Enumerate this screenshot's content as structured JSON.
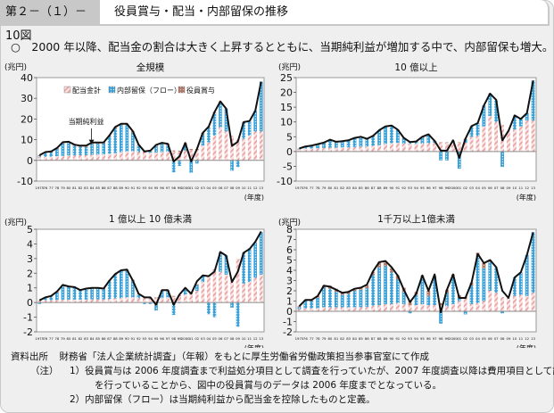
{
  "header": {
    "figure_number": "第２－（１）－10図",
    "figure_title": "役員賞与・配当・内部留保の推移"
  },
  "summary": "○　2000 年以降、配当金の割合は大きく上昇するとともに、当期純利益が増加する中で、内部留保も増大。",
  "legend": {
    "dividends": "配当金計",
    "retained": "内部留保（フロー）",
    "bonus": "役員賞与",
    "net_income": "当期純利益"
  },
  "colors": {
    "dividends": "#e8a0a0",
    "retained": "#3aa0d8",
    "bonus": "#b07868",
    "line": "#111111",
    "plot_bg": "#ffffff",
    "frame_bg": "#efefef"
  },
  "chart_data": [
    {
      "type": "bar",
      "title": "全規模",
      "ylabel": "(兆円)",
      "xlabel": "(年度)",
      "ylim": [
        -10,
        40
      ],
      "yticks": [
        -10,
        0,
        10,
        20,
        30,
        40
      ],
      "annotation": "当期純利益",
      "legend_position": "top",
      "categories": [
        "1975",
        "76",
        "77",
        "78",
        "79",
        "80",
        "81",
        "82",
        "83",
        "84",
        "85",
        "86",
        "87",
        "88",
        "89",
        "90",
        "91",
        "92",
        "93",
        "94",
        "95",
        "96",
        "97",
        "98",
        "99",
        "2000",
        "01",
        "02",
        "03",
        "04",
        "05",
        "06",
        "07",
        "08",
        "09",
        "10",
        "11",
        "12",
        "13"
      ],
      "series": [
        {
          "name": "配当金計",
          "values": [
            1.5,
            1.7,
            1.8,
            2.0,
            2.2,
            2.4,
            2.4,
            2.5,
            2.5,
            2.7,
            2.8,
            2.9,
            3.2,
            3.5,
            4.0,
            4.3,
            4.4,
            4.0,
            3.8,
            3.7,
            3.8,
            4.0,
            4.2,
            4.3,
            4.2,
            4.8,
            5.0,
            5.0,
            7.2,
            8.8,
            12.0,
            16.0,
            14.0,
            12.0,
            10.0,
            10.5,
            12.0,
            14.0,
            14.0
          ]
        },
        {
          "name": "内部留保（フロー）",
          "values": [
            0.5,
            1.8,
            2.0,
            3.5,
            6.0,
            6.0,
            4.6,
            4.0,
            4.0,
            5.3,
            5.2,
            5.2,
            8.3,
            12.0,
            13.0,
            12.7,
            9.0,
            3.0,
            0,
            0.5,
            3.2,
            4.0,
            3.3,
            -5.8,
            -2.7,
            3.1,
            -6.0,
            -1.5,
            5.6,
            7.0,
            10.8,
            12.0,
            11.0,
            -5.0,
            -3.2,
            8.0,
            7.0,
            10.0,
            24.0
          ]
        },
        {
          "name": "役員賞与",
          "values": [
            0.5,
            0.5,
            0.5,
            0.5,
            0.6,
            0.6,
            0.6,
            0.6,
            0.6,
            0.6,
            0.6,
            0.6,
            0.6,
            0.7,
            0.7,
            0.7,
            0.7,
            0.6,
            0.5,
            0.5,
            0.5,
            0.5,
            0.5,
            0.5,
            0.5,
            0.5,
            0.5,
            0.5,
            0.5,
            0.5,
            0.5,
            0.5,
            0,
            0,
            0,
            0,
            0,
            0,
            0
          ]
        },
        {
          "name": "当期純利益",
          "type": "line",
          "values": [
            2.5,
            4.0,
            4.3,
            6.0,
            8.8,
            9.0,
            7.6,
            7.1,
            7.1,
            8.6,
            8.6,
            8.7,
            12.1,
            16.2,
            17.7,
            17.7,
            14.1,
            7.6,
            4.3,
            4.7,
            7.5,
            8.5,
            8.0,
            -0.5,
            2.0,
            8.4,
            -0.5,
            5.5,
            13.3,
            16.3,
            23.3,
            28.5,
            25.0,
            7.0,
            9.0,
            18.5,
            19.0,
            24.0,
            38.0
          ]
        }
      ]
    },
    {
      "type": "bar",
      "title": "10 億以上",
      "ylabel": "(兆円)",
      "xlabel": "(年度)",
      "ylim": [
        -10,
        25
      ],
      "yticks": [
        -10,
        -5,
        0,
        5,
        10,
        15,
        20,
        25
      ],
      "categories": [
        "1975",
        "76",
        "77",
        "78",
        "79",
        "80",
        "81",
        "82",
        "83",
        "84",
        "85",
        "86",
        "87",
        "88",
        "89",
        "90",
        "91",
        "92",
        "93",
        "94",
        "95",
        "96",
        "97",
        "98",
        "99",
        "2000",
        "01",
        "02",
        "03",
        "04",
        "05",
        "06",
        "07",
        "08",
        "09",
        "10",
        "11",
        "12",
        "13"
      ],
      "series": [
        {
          "name": "配当金計",
          "values": [
            0.8,
            1.0,
            1.0,
            1.1,
            1.2,
            1.3,
            1.3,
            1.4,
            1.4,
            1.5,
            1.6,
            1.7,
            1.9,
            2.2,
            2.6,
            2.8,
            2.9,
            2.7,
            2.6,
            2.6,
            2.7,
            2.8,
            2.9,
            3.0,
            3.0,
            3.3,
            3.0,
            3.0,
            5.0,
            5.3,
            8.5,
            12.0,
            10.0,
            9.0,
            7.0,
            7.5,
            8.5,
            10.5,
            10.5
          ]
        },
        {
          "name": "内部留保（フロー）",
          "values": [
            0.1,
            0.6,
            0.8,
            1.2,
            1.7,
            2.5,
            1.9,
            1.9,
            2.3,
            3.0,
            3.2,
            2.5,
            3.3,
            4.9,
            5.8,
            5.9,
            4.4,
            1.8,
            0.5,
            0.7,
            2.2,
            2.9,
            0.6,
            -3.0,
            -3.0,
            0.5,
            -5.8,
            1.2,
            3.5,
            4.2,
            7.0,
            7.5,
            7.5,
            -5.2,
            0,
            4.7,
            2.5,
            2.5,
            13.5
          ]
        },
        {
          "name": "役員賞与",
          "values": [
            0.1,
            0.1,
            0.1,
            0.1,
            0.1,
            0.1,
            0.1,
            0.1,
            0.1,
            0.1,
            0.1,
            0.1,
            0.1,
            0.1,
            0.1,
            0.1,
            0.1,
            0.1,
            0.1,
            0.1,
            0.1,
            0.1,
            0.1,
            0.1,
            0.1,
            0.1,
            0.1,
            0.1,
            0.1,
            0.1,
            0.1,
            0.1,
            0,
            0,
            0,
            0,
            0,
            0,
            0
          ]
        },
        {
          "name": "当期純利益",
          "type": "line",
          "values": [
            1.0,
            1.7,
            2.0,
            2.5,
            3.0,
            4.0,
            3.3,
            3.5,
            3.8,
            4.6,
            5.0,
            4.3,
            5.3,
            7.2,
            8.5,
            8.8,
            7.4,
            4.6,
            3.2,
            3.4,
            5.0,
            5.8,
            3.6,
            0.3,
            0.3,
            3.8,
            -2.2,
            4.3,
            8.6,
            9.6,
            15.6,
            19.6,
            17.5,
            3.8,
            7.0,
            12.2,
            11.0,
            13.0,
            24.0
          ]
        }
      ]
    },
    {
      "type": "bar",
      "title": "1 億以上 10 億未満",
      "ylabel": "(兆円)",
      "xlabel": "(年度)",
      "ylim": [
        -2,
        5
      ],
      "yticks": [
        -2,
        -1,
        0,
        1,
        2,
        3,
        4,
        5
      ],
      "categories": [
        "1975",
        "76",
        "77",
        "78",
        "79",
        "80",
        "81",
        "82",
        "83",
        "84",
        "85",
        "86",
        "87",
        "88",
        "89",
        "90",
        "91",
        "92",
        "93",
        "94",
        "95",
        "96",
        "97",
        "98",
        "99",
        "2000",
        "01",
        "02",
        "03",
        "04",
        "05",
        "06",
        "07",
        "08",
        "09",
        "10",
        "11",
        "12",
        "13"
      ],
      "series": [
        {
          "name": "配当金計",
          "values": [
            0.1,
            0.15,
            0.15,
            0.18,
            0.2,
            0.2,
            0.2,
            0.2,
            0.2,
            0.22,
            0.22,
            0.22,
            0.25,
            0.28,
            0.3,
            0.35,
            0.35,
            0.3,
            0.3,
            0.3,
            0.3,
            0.3,
            0.35,
            0.4,
            0.45,
            0.55,
            0.6,
            0.8,
            1.4,
            1.8,
            2.2,
            2.1,
            1.9,
            1.5,
            3.0,
            1.3,
            1.4,
            1.7,
            1.9
          ]
        },
        {
          "name": "内部留保（フロー）",
          "values": [
            -0.1,
            0.15,
            0.25,
            0.5,
            0.95,
            0.85,
            0.85,
            0.6,
            0.7,
            0.75,
            0.75,
            0.7,
            1.2,
            1.6,
            1.85,
            1.85,
            1.15,
            0.25,
            -0.1,
            -0.1,
            -0.55,
            0.5,
            0.45,
            -0.85,
            -0.05,
            0.4,
            0,
            0.4,
            0.4,
            -0.8,
            -1.0,
            1.3,
            1.3,
            -0.35,
            -1.65,
            2.1,
            2.3,
            2.4,
            2.9
          ]
        },
        {
          "name": "役員賞与",
          "values": [
            0.05,
            0.05,
            0.05,
            0.05,
            0.05,
            0.05,
            0.05,
            0.05,
            0.05,
            0.05,
            0.05,
            0.05,
            0.05,
            0.05,
            0.05,
            0.05,
            0.05,
            0.05,
            0.05,
            0.05,
            0.05,
            0.05,
            0.05,
            0.05,
            0.05,
            0.05,
            0.05,
            0.05,
            0.05,
            0.05,
            0.05,
            0.05,
            0,
            0,
            0,
            0,
            0,
            0,
            0
          ]
        },
        {
          "name": "当期純利益",
          "type": "line",
          "values": [
            0.15,
            0.35,
            0.45,
            0.75,
            1.2,
            1.1,
            1.05,
            0.85,
            0.95,
            1.0,
            1.0,
            0.95,
            1.5,
            1.95,
            2.2,
            2.25,
            1.5,
            0.6,
            0.35,
            0.35,
            -0.15,
            0.85,
            0.85,
            -0.15,
            0.55,
            1.0,
            0.6,
            1.45,
            1.85,
            1.8,
            2.1,
            3.45,
            3.2,
            1.4,
            2.1,
            3.4,
            3.65,
            4.15,
            4.85
          ]
        }
      ]
    },
    {
      "type": "bar",
      "title": "1千万以上1億未満",
      "ylabel": "(兆円)",
      "xlabel": "(年度)",
      "ylim": [
        -2,
        8
      ],
      "yticks": [
        -2,
        -1,
        0,
        1,
        2,
        3,
        4,
        5,
        6,
        7,
        8
      ],
      "categories": [
        "1975",
        "76",
        "77",
        "78",
        "79",
        "80",
        "81",
        "82",
        "83",
        "84",
        "85",
        "86",
        "87",
        "88",
        "89",
        "90",
        "91",
        "92",
        "93",
        "94",
        "95",
        "96",
        "97",
        "98",
        "99",
        "2000",
        "01",
        "02",
        "03",
        "04",
        "05",
        "06",
        "07",
        "08",
        "09",
        "10",
        "11",
        "12",
        "13"
      ],
      "series": [
        {
          "name": "配当金計",
          "values": [
            0.2,
            0.3,
            0.3,
            0.3,
            0.4,
            0.4,
            0.4,
            0.4,
            0.4,
            0.4,
            0.4,
            0.45,
            0.55,
            0.6,
            0.7,
            0.7,
            0.8,
            0.7,
            0.6,
            0.6,
            0.7,
            0.6,
            0.6,
            0.6,
            0.5,
            0.7,
            1.0,
            1.2,
            0.7,
            0.8,
            1.0,
            2.0,
            1.8,
            1.4,
            1.3,
            1.5,
            1.6,
            1.5,
            1.8
          ]
        },
        {
          "name": "内部留保（フロー）",
          "values": [
            0.2,
            0.7,
            0.7,
            1.0,
            1.9,
            1.8,
            1.5,
            1.2,
            1.3,
            1.6,
            1.7,
            1.8,
            3.0,
            3.7,
            3.7,
            3.1,
            2.3,
            1.2,
            -0.2,
            1.0,
            2.7,
            0.9,
            2.8,
            -1.2,
            1.3,
            2.7,
            0.3,
            -0.3,
            1.8,
            4.6,
            3.2,
            2.8,
            2.5,
            -0.2,
            0,
            1.8,
            2.2,
            4.0,
            5.9
          ]
        },
        {
          "name": "役員賞与",
          "values": [
            0.1,
            0.1,
            0.1,
            0.2,
            0.2,
            0.3,
            0.3,
            0.2,
            0.2,
            0.2,
            0.2,
            0.3,
            0.3,
            0.5,
            0.5,
            0.4,
            0.4,
            0.4,
            0.4,
            0.3,
            0.1,
            0.5,
            0.1,
            0.2,
            0.3,
            0.2,
            0.3,
            0.2,
            0.3,
            0.3,
            0.5,
            0.2,
            0,
            0,
            0,
            0,
            0,
            0,
            0
          ]
        },
        {
          "name": "当期純利益",
          "type": "line",
          "values": [
            0.5,
            1.1,
            1.1,
            1.5,
            2.5,
            2.4,
            2.1,
            1.8,
            1.9,
            2.2,
            2.3,
            2.6,
            3.9,
            4.8,
            4.9,
            4.3,
            3.5,
            2.1,
            0.9,
            1.7,
            3.5,
            2.0,
            3.6,
            -0.1,
            2.1,
            3.6,
            1.3,
            1.3,
            2.8,
            5.6,
            4.7,
            5.0,
            4.3,
            2.0,
            1.3,
            3.3,
            3.8,
            5.5,
            7.7
          ]
        }
      ]
    }
  ],
  "footnotes": {
    "source_label": "資料出所",
    "source_text": "財務省「法人企業統計調査」（年報）をもとに厚生労働省労働政策担当参事官室にて作成",
    "notes_label": "（注）",
    "note1_line1": "1）役員賞与は 2006 年度調査まで利益処分項目として調査を行っていたが、2007 年度調査以降は費用項目として調査",
    "note1_line2": "を行っていることから、図中の役員賞与のデータは 2006 年度までとなっている。",
    "note2": "2）内部留保（フロー）は当期純利益から配当金を控除したものと定義。"
  }
}
